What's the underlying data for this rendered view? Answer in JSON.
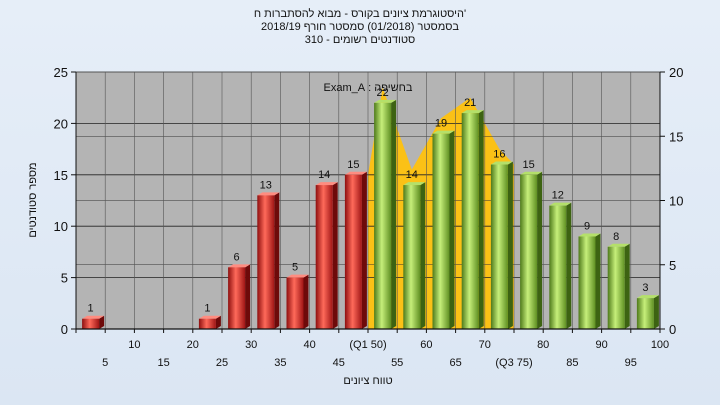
{
  "titles": {
    "line1": "'היסטוגרמת ציונים בקורס - מבוא להסתברות ח",
    "line2": "בסמסטר  (01/2018)  סמסטר חורף 2018/19",
    "line3": "סטודנטים רשומים - 310"
  },
  "chart_data": {
    "type": "bar",
    "ylabel": "מספר סטודנטים",
    "xlabel": "טווח ציונים",
    "ylim": [
      0,
      25
    ],
    "y_ticks": [
      0,
      5,
      10,
      15,
      20,
      25
    ],
    "y2lim": [
      0,
      20
    ],
    "y2_ticks": [
      0,
      5,
      10,
      15,
      20
    ],
    "grid": true,
    "x": [
      5,
      10,
      15,
      20,
      25,
      30,
      35,
      40,
      45,
      50,
      55,
      60,
      65,
      70,
      75,
      80,
      85,
      90,
      95,
      100
    ],
    "values": [
      1,
      0,
      0,
      0,
      1,
      6,
      13,
      5,
      14,
      15,
      22,
      14,
      19,
      21,
      16,
      15,
      12,
      9,
      8,
      3
    ],
    "pass_threshold": 55,
    "x_tick_labels_top": [
      "10",
      "20",
      "30",
      "40",
      "(Q1 50)",
      "60",
      "70",
      "80",
      "90",
      "100"
    ],
    "x_tick_labels_bottom": [
      "5",
      "15",
      "25",
      "35",
      "45",
      "55",
      "65",
      "(Q3 75)",
      "85",
      "95"
    ],
    "annotation": "בחשיפה : Exam_A",
    "colors": {
      "fail": "#dd2222",
      "pass": "#8dc63f",
      "area": "#ffc20e",
      "plot_bg": "#b4b4b4"
    }
  }
}
